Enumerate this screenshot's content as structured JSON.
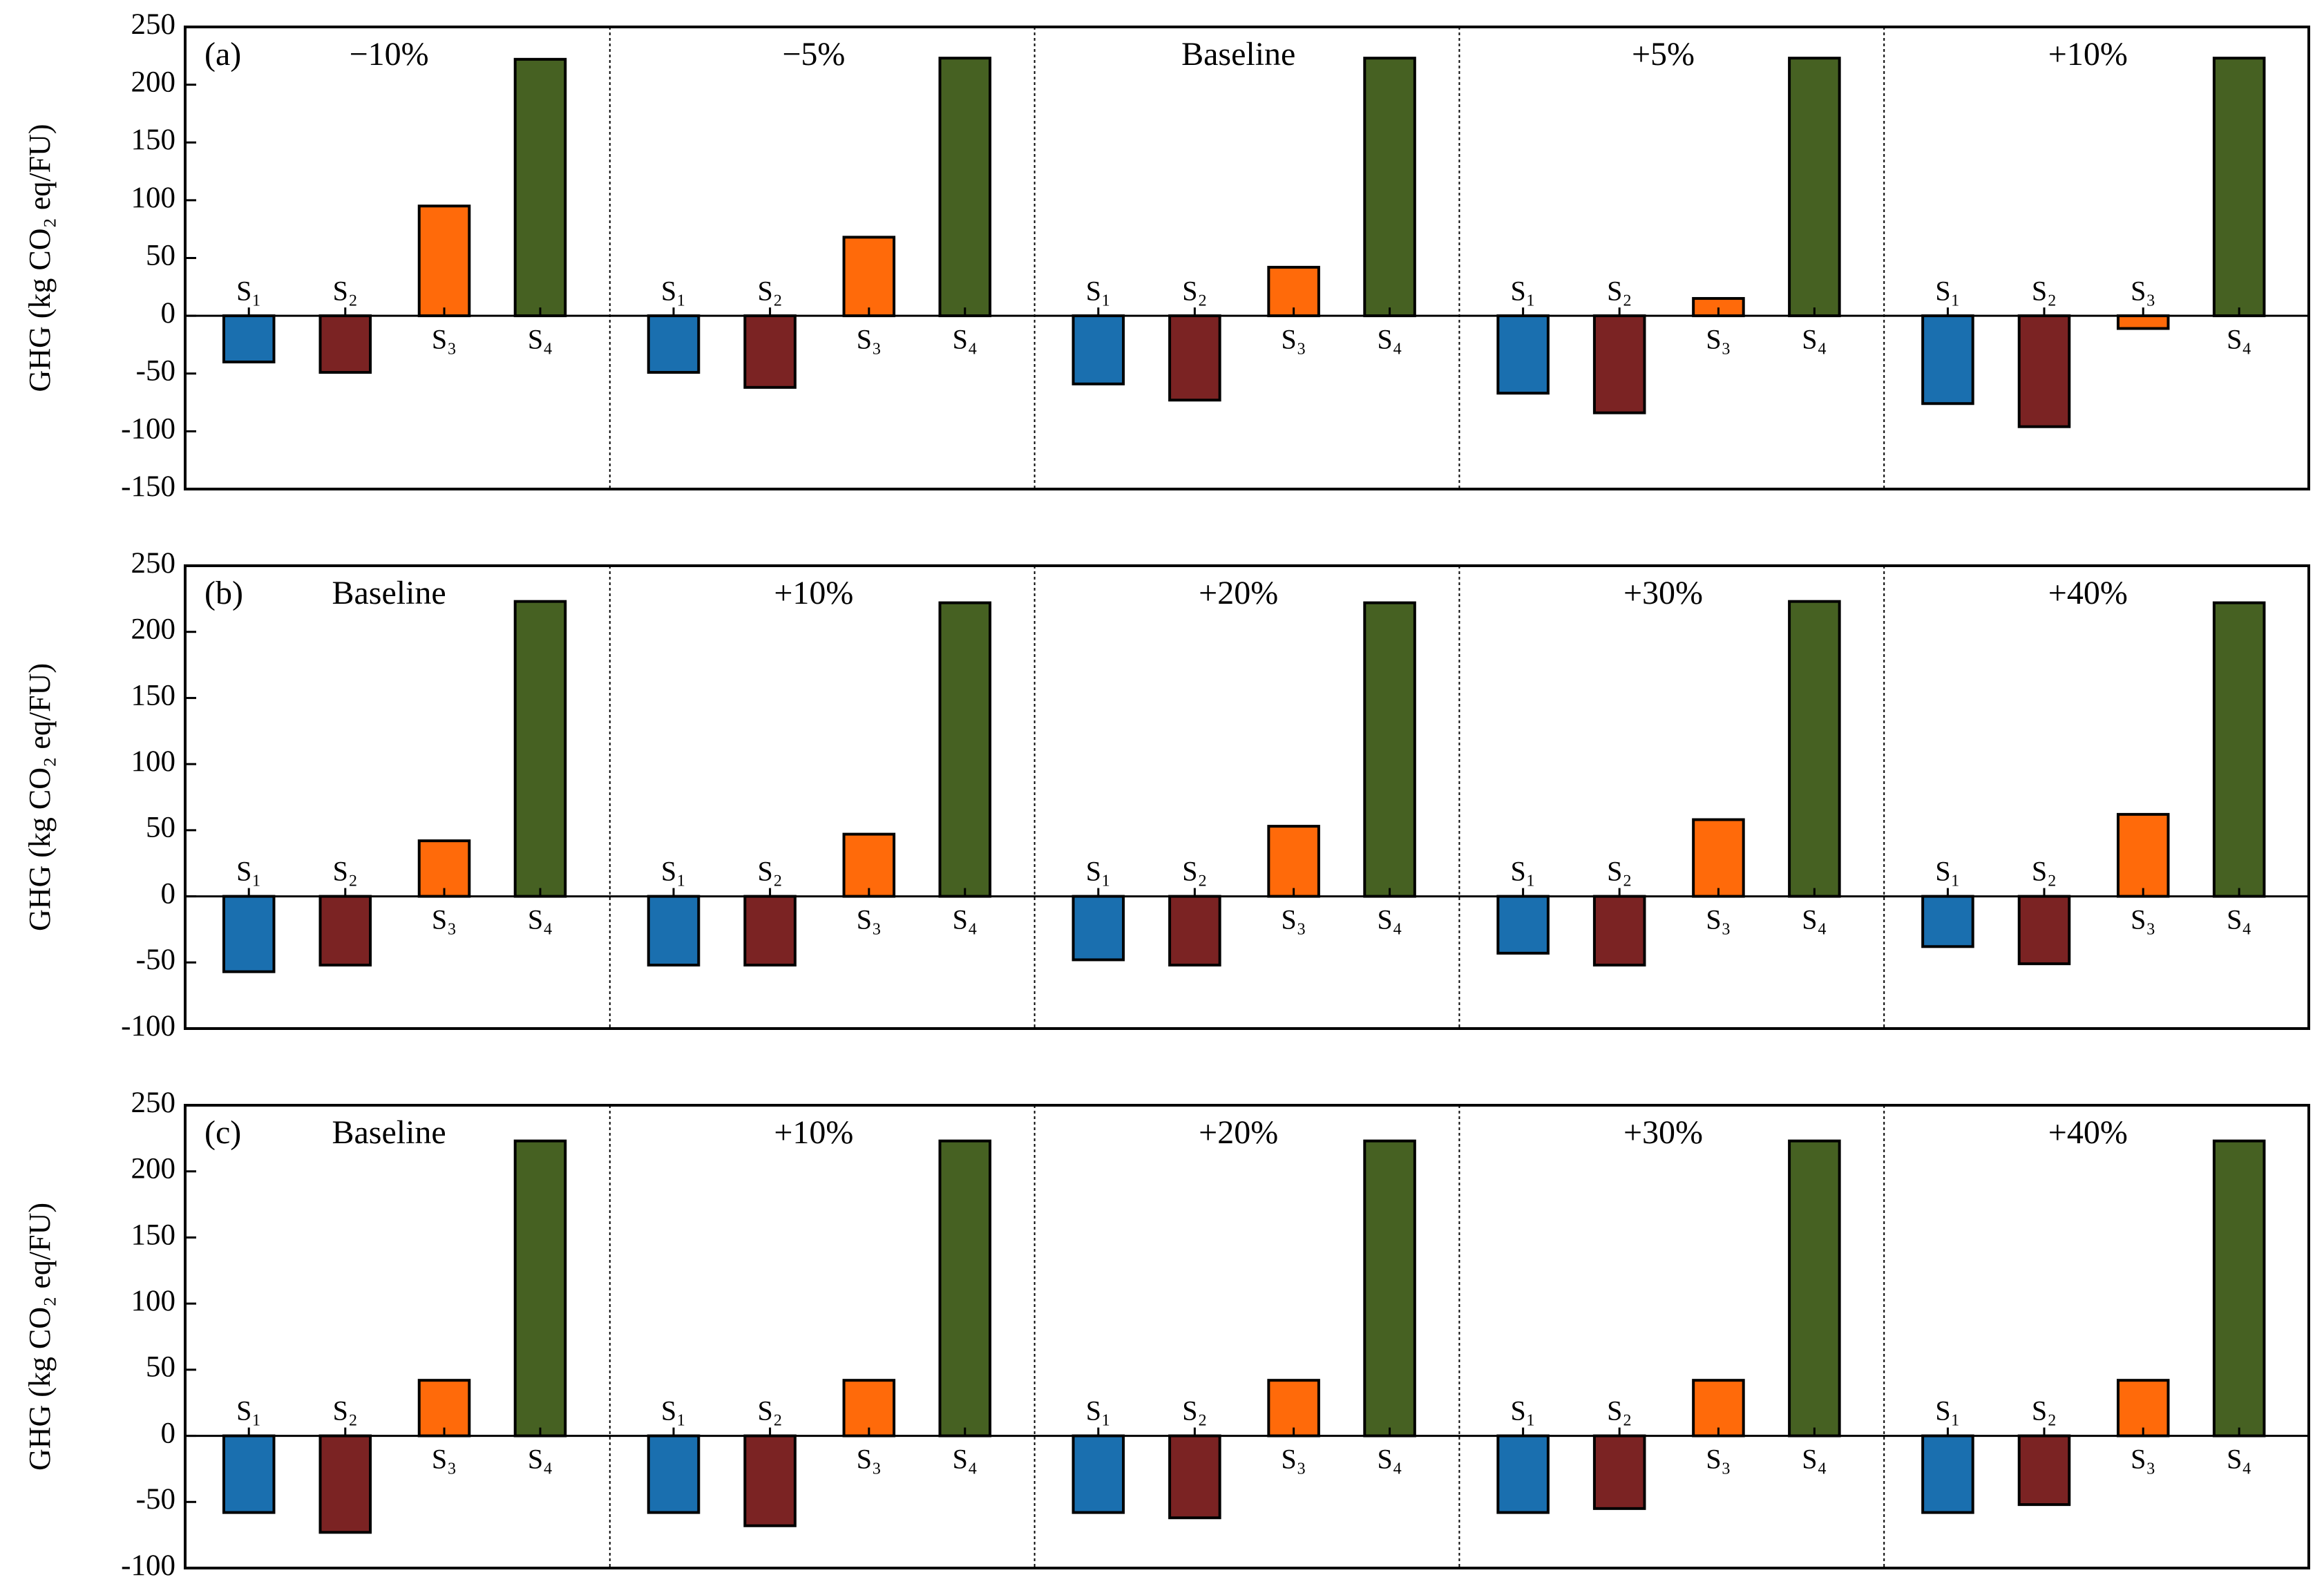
{
  "chart_data": [
    {
      "type": "bar",
      "panel_label": "(a)",
      "ylabel": "GHG (kg CO₂ eq/FU)",
      "categories": [
        "−10%",
        "−5%",
        "Baseline",
        "+5%",
        "+10%"
      ],
      "series": [
        {
          "name": "S₁",
          "color": "#1a6faf",
          "values": [
            -40,
            -49,
            -59,
            -67,
            -76
          ]
        },
        {
          "name": "S₂",
          "color": "#7b2323",
          "values": [
            -49,
            -62,
            -73,
            -84,
            -96
          ]
        },
        {
          "name": "S₃",
          "color": "#ff6a0a",
          "values": [
            95,
            68,
            42,
            15,
            -11
          ]
        },
        {
          "name": "S₄",
          "color": "#466122",
          "values": [
            222,
            223,
            223,
            223,
            223
          ]
        }
      ],
      "ylim": [
        -150,
        250
      ],
      "yticks": [
        -150,
        -100,
        -50,
        0,
        50,
        100,
        150,
        200,
        250
      ]
    },
    {
      "type": "bar",
      "panel_label": "(b)",
      "ylabel": "GHG (kg CO₂ eq/FU)",
      "categories": [
        "Baseline",
        "+10%",
        "+20%",
        "+30%",
        "+40%"
      ],
      "series": [
        {
          "name": "S₁",
          "color": "#1a6faf",
          "values": [
            -57,
            -52,
            -48,
            -43,
            -38
          ]
        },
        {
          "name": "S₂",
          "color": "#7b2323",
          "values": [
            -52,
            -52,
            -52,
            -52,
            -51
          ]
        },
        {
          "name": "S₃",
          "color": "#ff6a0a",
          "values": [
            42,
            47,
            53,
            58,
            62
          ]
        },
        {
          "name": "S₄",
          "color": "#466122",
          "values": [
            223,
            222,
            222,
            223,
            222
          ]
        }
      ],
      "ylim": [
        -100,
        250
      ],
      "yticks": [
        -100,
        -50,
        0,
        50,
        100,
        150,
        200,
        250
      ]
    },
    {
      "type": "bar",
      "panel_label": "(c)",
      "ylabel": "GHG (kg CO₂ eq/FU)",
      "categories": [
        "Baseline",
        "+10%",
        "+20%",
        "+30%",
        "+40%"
      ],
      "series": [
        {
          "name": "S₁",
          "color": "#1a6faf",
          "values": [
            -58,
            -58,
            -58,
            -58,
            -58
          ]
        },
        {
          "name": "S₂",
          "color": "#7b2323",
          "values": [
            -73,
            -68,
            -62,
            -55,
            -52
          ]
        },
        {
          "name": "S₃",
          "color": "#ff6a0a",
          "values": [
            42,
            42,
            42,
            42,
            42
          ]
        },
        {
          "name": "S₄",
          "color": "#466122",
          "values": [
            223,
            223,
            223,
            223,
            223
          ]
        }
      ],
      "ylim": [
        -100,
        250
      ],
      "yticks": [
        -100,
        -50,
        0,
        50,
        100,
        150,
        200,
        250
      ]
    }
  ]
}
